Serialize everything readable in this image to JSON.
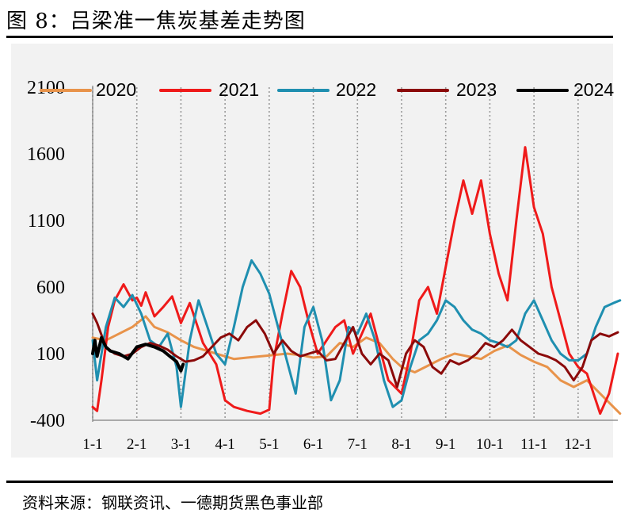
{
  "title": "图 8：吕梁准一焦炭基差走势图",
  "source": "资料来源：钢联资讯、一德期货黑色事业部",
  "chart_data": {
    "type": "line",
    "ylim": [
      -400,
      2100
    ],
    "yticks": [
      -400,
      100,
      600,
      1100,
      1600,
      2100
    ],
    "xticks": [
      "1-1",
      "2-1",
      "3-1",
      "4-1",
      "5-1",
      "6-1",
      "7-1",
      "8-1",
      "9-1",
      "10-1",
      "11-1",
      "12-1"
    ],
    "x_months": [
      1,
      12.9
    ],
    "grid": "vertical dotted",
    "legend": "top",
    "series": [
      {
        "name": "2020",
        "color": "#e8934a",
        "x": [
          1.0,
          1.3,
          1.6,
          1.9,
          2.2,
          2.4,
          2.7,
          3.0,
          3.3,
          3.6,
          3.9,
          4.2,
          4.5,
          4.8,
          5.1,
          5.4,
          5.7,
          6.0,
          6.3,
          6.6,
          6.9,
          7.2,
          7.5,
          7.8,
          8.0,
          8.3,
          8.6,
          8.9,
          9.2,
          9.5,
          9.8,
          10.1,
          10.4,
          10.7,
          11.0,
          11.3,
          11.6,
          11.9,
          12.2,
          12.5,
          12.8,
          12.95
        ],
        "y": [
          220,
          200,
          250,
          300,
          380,
          300,
          260,
          200,
          150,
          120,
          90,
          60,
          70,
          80,
          90,
          100,
          90,
          70,
          80,
          180,
          150,
          220,
          180,
          60,
          0,
          -40,
          10,
          60,
          100,
          80,
          60,
          120,
          160,
          90,
          40,
          0,
          -100,
          -150,
          -100,
          -200,
          -300,
          -350
        ]
      },
      {
        "name": "2021",
        "color": "#ef1a1a",
        "x": [
          1.0,
          1.1,
          1.2,
          1.35,
          1.5,
          1.7,
          1.9,
          2.0,
          2.1,
          2.2,
          2.4,
          2.6,
          2.8,
          3.0,
          3.2,
          3.5,
          3.8,
          4.0,
          4.2,
          4.5,
          4.8,
          5.0,
          5.1,
          5.3,
          5.5,
          5.7,
          5.9,
          6.1,
          6.3,
          6.5,
          6.7,
          6.9,
          7.1,
          7.3,
          7.5,
          7.7,
          8.0,
          8.2,
          8.4,
          8.6,
          8.8,
          9.0,
          9.2,
          9.4,
          9.6,
          9.8,
          10.0,
          10.2,
          10.4,
          10.6,
          10.8,
          11.0,
          11.2,
          11.4,
          11.6,
          11.8,
          12.0,
          12.2,
          12.5,
          12.7,
          12.9
        ],
        "y": [
          -300,
          -330,
          -100,
          300,
          500,
          620,
          500,
          520,
          460,
          560,
          380,
          450,
          530,
          330,
          480,
          180,
          20,
          -250,
          -300,
          -330,
          -350,
          -320,
          50,
          400,
          720,
          600,
          330,
          100,
          200,
          300,
          350,
          100,
          250,
          400,
          150,
          -100,
          -200,
          100,
          500,
          600,
          400,
          750,
          1100,
          1400,
          1150,
          1400,
          1000,
          700,
          500,
          1100,
          1650,
          1200,
          1000,
          600,
          350,
          100,
          0,
          -50,
          -350,
          -200,
          100
        ]
      },
      {
        "name": "2022",
        "color": "#1f8fb0",
        "x": [
          1.0,
          1.1,
          1.3,
          1.5,
          1.7,
          1.9,
          2.1,
          2.3,
          2.5,
          2.7,
          2.9,
          3.0,
          3.2,
          3.4,
          3.6,
          3.8,
          4.0,
          4.2,
          4.4,
          4.6,
          4.8,
          5.0,
          5.2,
          5.4,
          5.6,
          5.8,
          6.0,
          6.2,
          6.4,
          6.6,
          6.8,
          7.0,
          7.2,
          7.4,
          7.6,
          7.8,
          8.0,
          8.2,
          8.4,
          8.6,
          8.8,
          9.0,
          9.2,
          9.4,
          9.6,
          9.8,
          10.0,
          10.2,
          10.4,
          10.6,
          10.8,
          11.0,
          11.2,
          11.4,
          11.6,
          11.8,
          12.0,
          12.2,
          12.4,
          12.6,
          12.8,
          12.95
        ],
        "y": [
          200,
          -100,
          300,
          520,
          450,
          540,
          400,
          200,
          150,
          250,
          0,
          -300,
          200,
          500,
          300,
          100,
          20,
          300,
          600,
          800,
          700,
          550,
          300,
          50,
          -200,
          300,
          450,
          200,
          -250,
          -100,
          300,
          250,
          400,
          200,
          -100,
          -300,
          -250,
          0,
          200,
          250,
          350,
          500,
          450,
          350,
          280,
          250,
          200,
          180,
          150,
          200,
          400,
          500,
          350,
          200,
          100,
          50,
          50,
          100,
          300,
          450,
          480,
          500
        ]
      },
      {
        "name": "2023",
        "color": "#8b0a0a",
        "x": [
          1.0,
          1.1,
          1.3,
          1.5,
          1.7,
          1.9,
          2.1,
          2.3,
          2.5,
          2.7,
          2.9,
          3.1,
          3.3,
          3.5,
          3.7,
          3.9,
          4.1,
          4.3,
          4.5,
          4.7,
          4.9,
          5.1,
          5.3,
          5.5,
          5.7,
          5.9,
          6.1,
          6.3,
          6.5,
          6.7,
          6.9,
          7.1,
          7.3,
          7.5,
          7.7,
          7.9,
          8.1,
          8.3,
          8.5,
          8.7,
          8.9,
          9.1,
          9.3,
          9.5,
          9.7,
          9.9,
          10.1,
          10.3,
          10.5,
          10.7,
          10.9,
          11.1,
          11.3,
          11.5,
          11.7,
          11.9,
          12.1,
          12.3,
          12.5,
          12.7,
          12.9
        ],
        "y": [
          400,
          330,
          150,
          100,
          80,
          100,
          150,
          180,
          160,
          130,
          80,
          40,
          50,
          80,
          150,
          220,
          250,
          200,
          300,
          350,
          250,
          100,
          200,
          120,
          80,
          100,
          120,
          50,
          60,
          180,
          300,
          100,
          20,
          100,
          50,
          -150,
          100,
          200,
          150,
          0,
          -50,
          50,
          20,
          50,
          100,
          180,
          150,
          200,
          280,
          200,
          150,
          100,
          80,
          50,
          0,
          -100,
          0,
          200,
          250,
          230,
          260
        ]
      },
      {
        "name": "2024",
        "color": "#000000",
        "x": [
          1.0,
          1.05,
          1.1,
          1.2,
          1.3,
          1.4,
          1.6,
          1.8,
          2.0,
          2.2,
          2.4,
          2.6,
          2.75,
          2.9,
          3.0,
          3.05
        ],
        "y": [
          100,
          200,
          80,
          220,
          150,
          120,
          100,
          60,
          150,
          170,
          150,
          120,
          80,
          40,
          -30,
          20
        ]
      }
    ]
  }
}
